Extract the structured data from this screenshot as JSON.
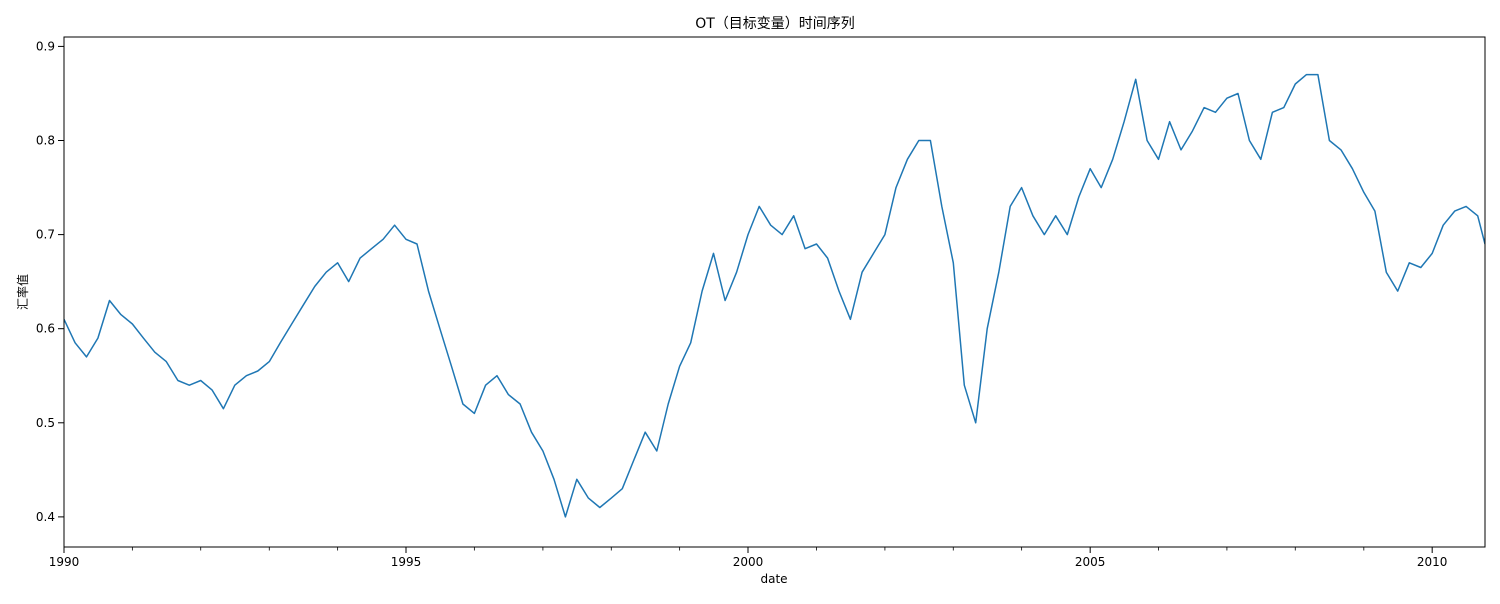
{
  "chart_data": {
    "type": "line",
    "title": "OT（目标变量）时间序列",
    "xlabel": "date",
    "ylabel": "汇率值",
    "xlim": [
      "1990-01-01",
      "2010-10-10"
    ],
    "ylim": [
      0.368,
      0.91
    ],
    "x_ticks_major": [
      "1990",
      "1995",
      "2000",
      "2005",
      "2010"
    ],
    "x_ticks_minor": [
      "1991",
      "1992",
      "1993",
      "1994",
      "1996",
      "1997",
      "1998",
      "1999",
      "2001",
      "2002",
      "2003",
      "2004",
      "2006",
      "2007",
      "2008",
      "2009"
    ],
    "y_ticks": [
      0.4,
      0.5,
      0.6,
      0.7,
      0.8,
      0.9
    ],
    "y_tick_labels": [
      "0.4",
      "0.5",
      "0.6",
      "0.7",
      "0.8",
      "0.9"
    ],
    "grid": false,
    "line_color": "#1f77b4",
    "series": [
      {
        "x": [
          "1990-01-01",
          "1990-03-01",
          "1990-05-01",
          "1990-07-01",
          "1990-09-01",
          "1990-11-01",
          "1991-01-01",
          "1991-03-01",
          "1991-05-01",
          "1991-07-01",
          "1991-09-01",
          "1991-11-01",
          "1992-01-01",
          "1992-03-01",
          "1992-05-01",
          "1992-07-01",
          "1992-09-01",
          "1992-11-01",
          "1993-01-01",
          "1993-03-01",
          "1993-05-01",
          "1993-07-01",
          "1993-09-01",
          "1993-11-01",
          "1994-01-01",
          "1994-03-01",
          "1994-05-01",
          "1994-07-01",
          "1994-09-01",
          "1994-11-01",
          "1995-01-01",
          "1995-03-01",
          "1995-05-01",
          "1995-07-01",
          "1995-09-01",
          "1995-11-01",
          "1996-01-01",
          "1996-03-01",
          "1996-05-01",
          "1996-07-01",
          "1996-09-01",
          "1996-11-01",
          "1997-01-01",
          "1997-03-01",
          "1997-05-01",
          "1997-07-01",
          "1997-09-01",
          "1997-11-01",
          "1998-01-01",
          "1998-03-01",
          "1998-05-01",
          "1998-07-01",
          "1998-09-01",
          "1998-11-01",
          "1999-01-01",
          "1999-03-01",
          "1999-05-01",
          "1999-07-01",
          "1999-09-01",
          "1999-11-01",
          "2000-01-01",
          "2000-03-01",
          "2000-05-01",
          "2000-07-01",
          "2000-09-01",
          "2000-11-01",
          "2001-01-01",
          "2001-03-01",
          "2001-05-01",
          "2001-07-01",
          "2001-09-01",
          "2001-11-01",
          "2002-01-01",
          "2002-03-01",
          "2002-05-01",
          "2002-07-01",
          "2002-09-01",
          "2002-11-01",
          "2003-01-01",
          "2003-03-01",
          "2003-05-01",
          "2003-07-01",
          "2003-09-01",
          "2003-11-01",
          "2004-01-01",
          "2004-03-01",
          "2004-05-01",
          "2004-07-01",
          "2004-09-01",
          "2004-11-01",
          "2005-01-01",
          "2005-03-01",
          "2005-05-01",
          "2005-07-01",
          "2005-09-01",
          "2005-11-01",
          "2006-01-01",
          "2006-03-01",
          "2006-05-01",
          "2006-07-01",
          "2006-09-01",
          "2006-11-01",
          "2007-01-01",
          "2007-03-01",
          "2007-05-01",
          "2007-07-01",
          "2007-09-01",
          "2007-11-01",
          "2008-01-01",
          "2008-03-01",
          "2008-05-01",
          "2008-07-01",
          "2008-09-01",
          "2008-11-01",
          "2009-01-01",
          "2009-03-01",
          "2009-05-01",
          "2009-07-01",
          "2009-09-01",
          "2009-11-01",
          "2010-01-01",
          "2010-03-01",
          "2010-05-01",
          "2010-07-01",
          "2010-09-01",
          "2010-10-10"
        ],
        "y": [
          0.61,
          0.585,
          0.57,
          0.59,
          0.63,
          0.615,
          0.605,
          0.59,
          0.575,
          0.565,
          0.545,
          0.54,
          0.545,
          0.535,
          0.515,
          0.54,
          0.55,
          0.555,
          0.565,
          0.585,
          0.605,
          0.625,
          0.645,
          0.66,
          0.67,
          0.65,
          0.675,
          0.685,
          0.695,
          0.71,
          0.695,
          0.69,
          0.64,
          0.6,
          0.56,
          0.52,
          0.51,
          0.54,
          0.55,
          0.53,
          0.52,
          0.49,
          0.47,
          0.44,
          0.4,
          0.44,
          0.42,
          0.41,
          0.42,
          0.43,
          0.46,
          0.49,
          0.47,
          0.52,
          0.56,
          0.585,
          0.64,
          0.68,
          0.63,
          0.66,
          0.7,
          0.73,
          0.71,
          0.7,
          0.72,
          0.685,
          0.69,
          0.675,
          0.64,
          0.61,
          0.66,
          0.68,
          0.7,
          0.75,
          0.78,
          0.8,
          0.8,
          0.73,
          0.67,
          0.54,
          0.5,
          0.6,
          0.66,
          0.73,
          0.75,
          0.72,
          0.7,
          0.72,
          0.7,
          0.74,
          0.77,
          0.75,
          0.78,
          0.82,
          0.865,
          0.8,
          0.78,
          0.82,
          0.79,
          0.81,
          0.835,
          0.83,
          0.845,
          0.85,
          0.8,
          0.78,
          0.83,
          0.835,
          0.86,
          0.87,
          0.87,
          0.8,
          0.79,
          0.77,
          0.745,
          0.725,
          0.66,
          0.64,
          0.67,
          0.665,
          0.68,
          0.71,
          0.725,
          0.73,
          0.72,
          0.69
        ]
      }
    ]
  }
}
